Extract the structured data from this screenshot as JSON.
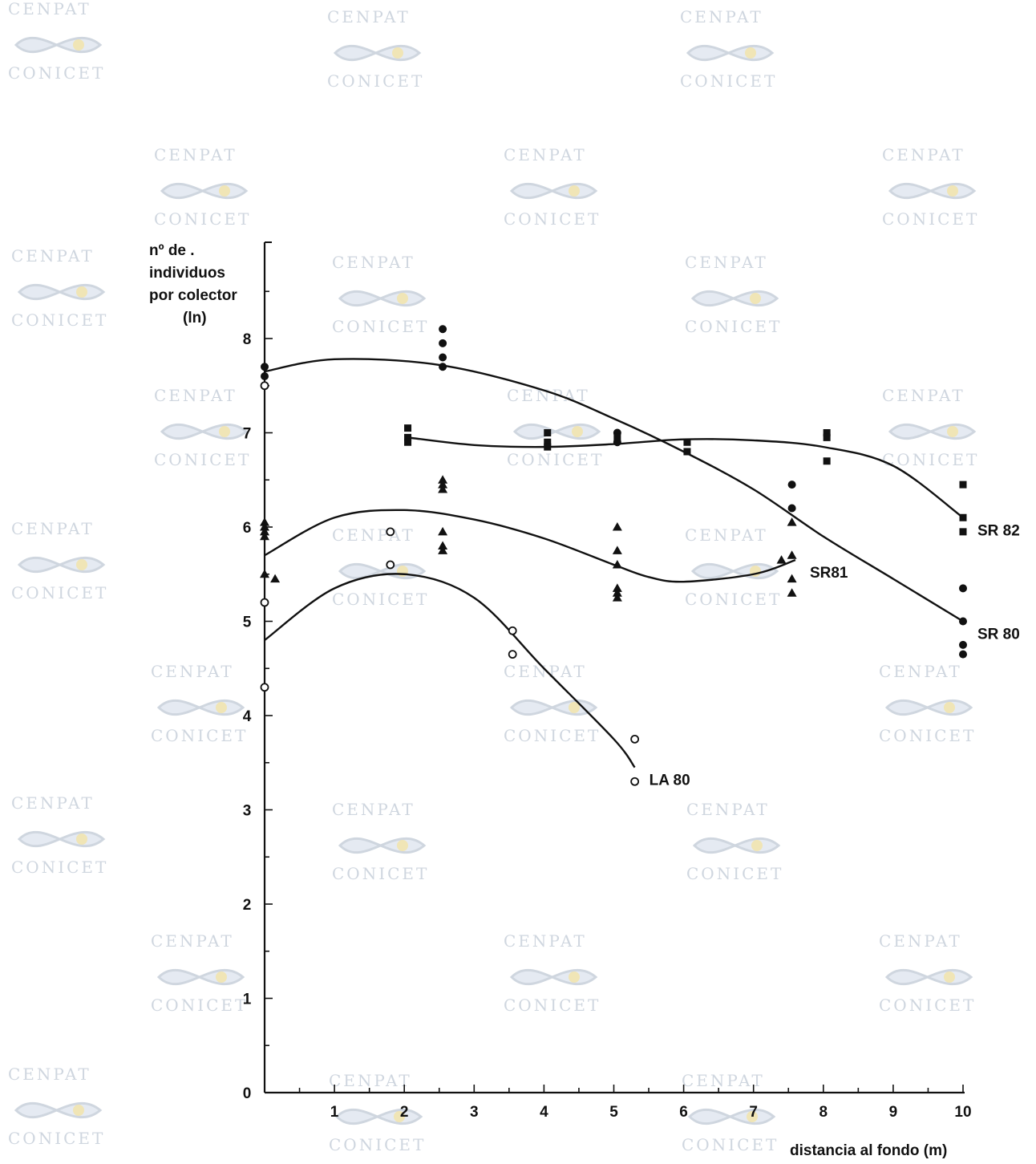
{
  "watermark": {
    "top": "CENPAT",
    "bottom": "CONICET"
  },
  "chart_data": {
    "type": "scatter",
    "title": "",
    "ylabel_lines": [
      "nº de  .",
      "individuos",
      "por colector",
      "(ln)"
    ],
    "xlabel": "distancia al fondo (m)",
    "xlim": [
      0,
      10
    ],
    "ylim": [
      0,
      8
    ],
    "x_ticks": [
      "1",
      "2",
      "3",
      "4",
      "5",
      "6",
      "7",
      "8",
      "9",
      "10"
    ],
    "y_ticks": [
      "0",
      "1",
      "2",
      "3",
      "4",
      "5",
      "6",
      "7",
      "8"
    ],
    "grid": false,
    "series": [
      {
        "name": "SR 80",
        "marker": "filled-circle",
        "points": [
          [
            0,
            7.7
          ],
          [
            0,
            7.6
          ],
          [
            2.55,
            8.1
          ],
          [
            2.55,
            7.95
          ],
          [
            2.55,
            7.8
          ],
          [
            2.55,
            7.7
          ],
          [
            5.05,
            7.0
          ],
          [
            5.05,
            6.9
          ],
          [
            7.55,
            6.45
          ],
          [
            7.55,
            6.2
          ],
          [
            10,
            5.35
          ],
          [
            10,
            5.0
          ],
          [
            10,
            4.75
          ],
          [
            10,
            4.65
          ]
        ],
        "curve": [
          [
            0,
            7.65
          ],
          [
            1,
            7.78
          ],
          [
            2.5,
            7.72
          ],
          [
            4,
            7.45
          ],
          [
            5,
            7.15
          ],
          [
            6,
            6.8
          ],
          [
            7,
            6.4
          ],
          [
            8,
            5.9
          ],
          [
            9,
            5.45
          ],
          [
            10,
            5.0
          ]
        ]
      },
      {
        "name": "SR 82",
        "marker": "filled-square",
        "points": [
          [
            2.05,
            7.05
          ],
          [
            2.05,
            6.95
          ],
          [
            2.05,
            6.9
          ],
          [
            4.05,
            7.0
          ],
          [
            4.05,
            6.9
          ],
          [
            4.05,
            6.85
          ],
          [
            5.05,
            6.95
          ],
          [
            6.05,
            6.9
          ],
          [
            6.05,
            6.8
          ],
          [
            8.05,
            7.0
          ],
          [
            8.05,
            6.95
          ],
          [
            8.05,
            6.7
          ],
          [
            10,
            6.45
          ],
          [
            10,
            6.1
          ],
          [
            10,
            5.95
          ]
        ],
        "curve": [
          [
            2.05,
            6.95
          ],
          [
            3,
            6.87
          ],
          [
            4,
            6.85
          ],
          [
            5,
            6.88
          ],
          [
            6,
            6.93
          ],
          [
            7,
            6.92
          ],
          [
            8,
            6.85
          ],
          [
            9,
            6.65
          ],
          [
            10,
            6.1
          ]
        ]
      },
      {
        "name": "SR81",
        "marker": "filled-triangle",
        "points": [
          [
            0,
            6.05
          ],
          [
            0,
            6.0
          ],
          [
            0,
            5.95
          ],
          [
            0,
            5.9
          ],
          [
            0,
            5.5
          ],
          [
            0.15,
            5.45
          ],
          [
            2.55,
            6.5
          ],
          [
            2.55,
            6.45
          ],
          [
            2.55,
            6.4
          ],
          [
            2.55,
            5.95
          ],
          [
            2.55,
            5.8
          ],
          [
            2.55,
            5.75
          ],
          [
            5.05,
            6.0
          ],
          [
            5.05,
            5.75
          ],
          [
            5.05,
            5.6
          ],
          [
            5.05,
            5.35
          ],
          [
            5.05,
            5.3
          ],
          [
            5.05,
            5.25
          ],
          [
            7.55,
            6.05
          ],
          [
            7.4,
            5.65
          ],
          [
            7.55,
            5.7
          ],
          [
            7.55,
            5.45
          ],
          [
            7.55,
            5.3
          ]
        ],
        "curve": [
          [
            0,
            5.7
          ],
          [
            1,
            6.1
          ],
          [
            2,
            6.18
          ],
          [
            3,
            6.08
          ],
          [
            4,
            5.88
          ],
          [
            5,
            5.6
          ],
          [
            5.5,
            5.47
          ],
          [
            6,
            5.42
          ],
          [
            7,
            5.5
          ],
          [
            7.6,
            5.65
          ]
        ]
      },
      {
        "name": "LA 80",
        "marker": "open-circle",
        "points": [
          [
            0,
            7.5
          ],
          [
            0,
            5.2
          ],
          [
            0,
            4.3
          ],
          [
            1.8,
            5.95
          ],
          [
            1.8,
            5.6
          ],
          [
            3.55,
            4.9
          ],
          [
            3.55,
            4.65
          ],
          [
            5.3,
            3.75
          ],
          [
            5.3,
            3.3
          ]
        ],
        "curve": [
          [
            0,
            4.8
          ],
          [
            1,
            5.35
          ],
          [
            2,
            5.5
          ],
          [
            3,
            5.25
          ],
          [
            4,
            4.5
          ],
          [
            5,
            3.75
          ],
          [
            5.3,
            3.45
          ]
        ]
      }
    ]
  }
}
